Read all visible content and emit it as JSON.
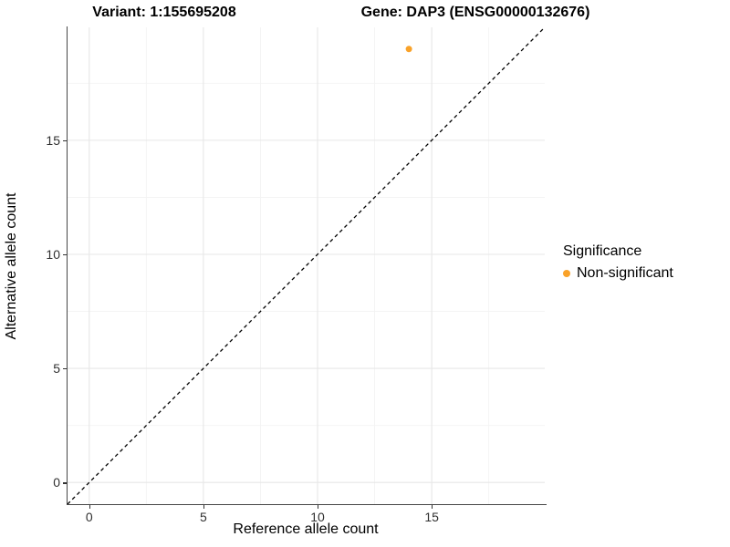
{
  "titles": {
    "variant": "Variant: 1:155695208",
    "gene": "Gene: DAP3 (ENSG00000132676)"
  },
  "chart_data": {
    "type": "scatter",
    "title": "Variant: 1:155695208   Gene: DAP3 (ENSG00000132676)",
    "xlabel": "Reference allele count",
    "ylabel": "Alternative allele count",
    "xlim": [
      -0.95,
      19.95
    ],
    "ylim": [
      -0.95,
      19.95
    ],
    "x_ticks": [
      0,
      5,
      10,
      15
    ],
    "y_ticks": [
      0,
      5,
      10,
      15
    ],
    "x_minor_ticks": [
      2.5,
      7.5,
      12.5,
      17.5
    ],
    "y_minor_ticks": [
      2.5,
      7.5,
      12.5,
      17.5
    ],
    "grid": true,
    "series": [
      {
        "name": "Non-significant",
        "color": "#F9A229",
        "points": [
          {
            "x": 14,
            "y": 19
          }
        ]
      }
    ],
    "reference_line": {
      "kind": "identity",
      "slope": 1,
      "intercept": 0,
      "style": "dashed",
      "color": "#000000"
    },
    "legend": {
      "title": "Significance",
      "position": "right",
      "entries": [
        {
          "label": "Non-significant",
          "color": "#F9A229",
          "marker": "circle"
        }
      ]
    }
  },
  "colors": {
    "background": "#FFFFFF",
    "point_orange": "#F9A229",
    "axis_line": "#474747",
    "tick_text": "#303030",
    "grid_major": "#E7E7E7",
    "grid_minor": "#F3F3F3"
  }
}
